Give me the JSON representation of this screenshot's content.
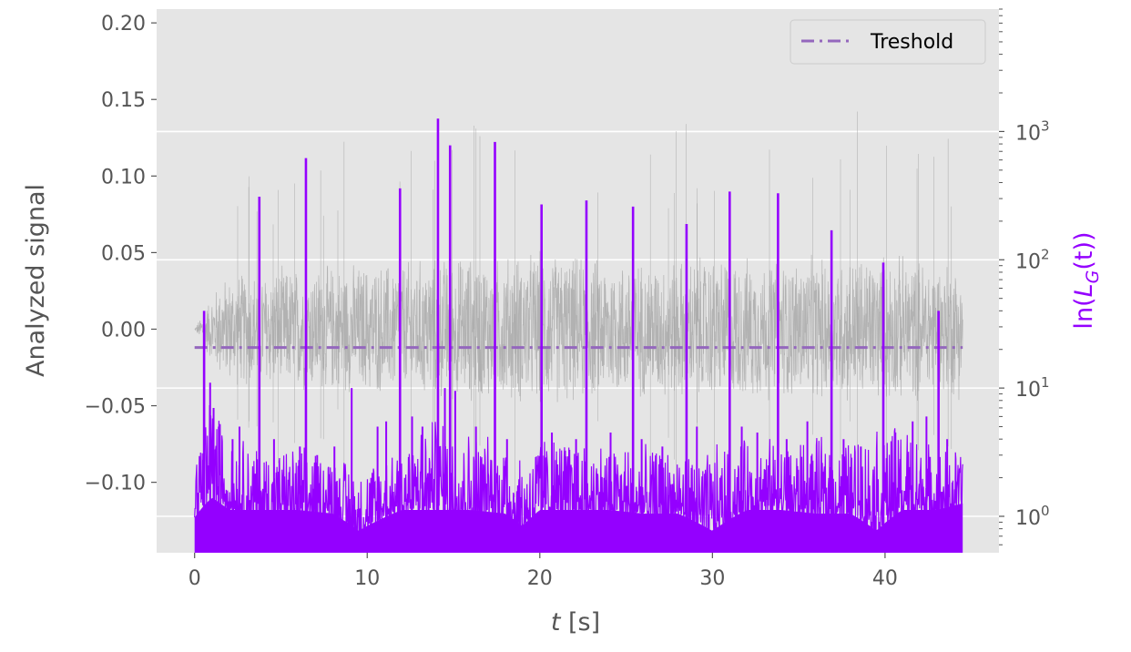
{
  "chart_data": {
    "type": "line",
    "xlabel_main": "t",
    "xlabel_unit": "[s]",
    "ylabel_left": "Analyzed signal",
    "ylabel_right_prefix": "ln(",
    "ylabel_right_L": "L",
    "ylabel_right_sub": "G",
    "ylabel_right_suffix": "(t))",
    "xlim": [
      -2.2,
      46.6
    ],
    "ylim_left": [
      -0.146,
      0.209
    ],
    "ylim_right_log": [
      0.52,
      9000
    ],
    "x_ticks": [
      0,
      10,
      20,
      30,
      40
    ],
    "x_tick_labels": [
      "0",
      "10",
      "20",
      "30",
      "40"
    ],
    "y_left_ticks": [
      0.2,
      0.15,
      0.1,
      0.05,
      0.0,
      -0.05,
      -0.1
    ],
    "y_left_tick_labels": [
      "0.20",
      "0.15",
      "0.10",
      "0.05",
      "0.00",
      "−0.05",
      "−0.10"
    ],
    "y_right_major_ticks": [
      1,
      10,
      100,
      1000
    ],
    "y_right_tick_base": "10",
    "y_right_tick_exponents": [
      "0",
      "1",
      "2",
      "3"
    ],
    "grid": true,
    "legend_position": "top-right",
    "legend": [
      {
        "label": "Treshold",
        "color": "#9467bd",
        "style": "dash-dot"
      }
    ],
    "threshold": {
      "axis": "left",
      "y": -0.012,
      "x_range": [
        0,
        44.5
      ]
    },
    "series": [
      {
        "name": "signal",
        "axis": "left",
        "color": "#a0a0a0",
        "envelope": {
          "t": [
            0,
            0.8,
            1.5,
            2.5,
            4,
            6,
            8,
            10,
            12,
            14,
            16,
            18,
            20,
            22,
            24,
            26,
            28,
            30,
            32,
            34,
            36,
            38,
            40,
            42,
            44.5
          ],
          "amplitude": [
            0.0,
            0.02,
            0.035,
            0.04,
            0.042,
            0.044,
            0.045,
            0.046,
            0.048,
            0.05,
            0.052,
            0.052,
            0.055,
            0.052,
            0.05,
            0.048,
            0.05,
            0.052,
            0.05,
            0.05,
            0.05,
            0.052,
            0.053,
            0.05,
            0.048
          ]
        }
      },
      {
        "name": "likelihood",
        "axis": "right",
        "color": "#9400ff",
        "peaks": {
          "t": [
            0.55,
            3.75,
            6.45,
            11.9,
            14.1,
            14.8,
            17.4,
            20.1,
            22.7,
            25.4,
            28.5,
            31.0,
            33.8,
            36.9,
            39.9,
            43.1
          ],
          "value": [
            40,
            310,
            620,
            360,
            1260,
            780,
            830,
            270,
            290,
            260,
            190,
            340,
            330,
            170,
            95,
            40
          ]
        },
        "noise_floor": {
          "t": [
            0,
            1,
            2,
            4,
            6,
            8,
            9.5,
            12,
            14,
            16,
            18,
            19,
            20,
            22,
            24,
            26,
            28,
            29.5,
            30,
            32,
            34,
            36,
            38,
            39.5,
            41,
            43,
            44.5
          ],
          "low": [
            0.7,
            1.0,
            0.8,
            0.8,
            0.8,
            0.75,
            0.55,
            0.8,
            0.8,
            0.8,
            0.75,
            0.6,
            0.8,
            0.8,
            0.8,
            0.75,
            0.75,
            0.6,
            0.55,
            0.8,
            0.8,
            0.75,
            0.75,
            0.55,
            0.8,
            0.8,
            0.9
          ],
          "high": [
            4,
            7,
            4,
            3,
            3,
            3,
            2,
            3.5,
            5,
            4,
            3.5,
            2.5,
            4,
            3.5,
            3.5,
            3,
            3,
            2.5,
            3,
            3.5,
            3.5,
            3.5,
            3.5,
            4,
            4.5,
            3,
            3
          ]
        },
        "secondary_peaks": {
          "t": [
            0.9,
            1.1,
            1.4,
            2.2,
            2.6,
            4.6,
            6.1,
            7.1,
            8.1,
            9.1,
            10.6,
            11.1,
            12.6,
            13.2,
            14.5,
            15.1,
            16.3,
            18.1,
            20.7,
            22.1,
            24.1,
            25.9,
            27.1,
            29.1,
            31.7,
            32.6,
            34.3,
            35.5,
            37.6,
            38.6,
            40.6,
            41.6,
            42.4,
            43.6
          ],
          "value": [
            11,
            7,
            5,
            4,
            5,
            4,
            3.5,
            3,
            3.5,
            10,
            5,
            5.5,
            6,
            5,
            10,
            9.5,
            5,
            4,
            4.5,
            4,
            4.5,
            4,
            3.5,
            5,
            5,
            4.5,
            4,
            5.5,
            4,
            3.5,
            4.5,
            5.5,
            6,
            4
          ]
        }
      }
    ]
  }
}
